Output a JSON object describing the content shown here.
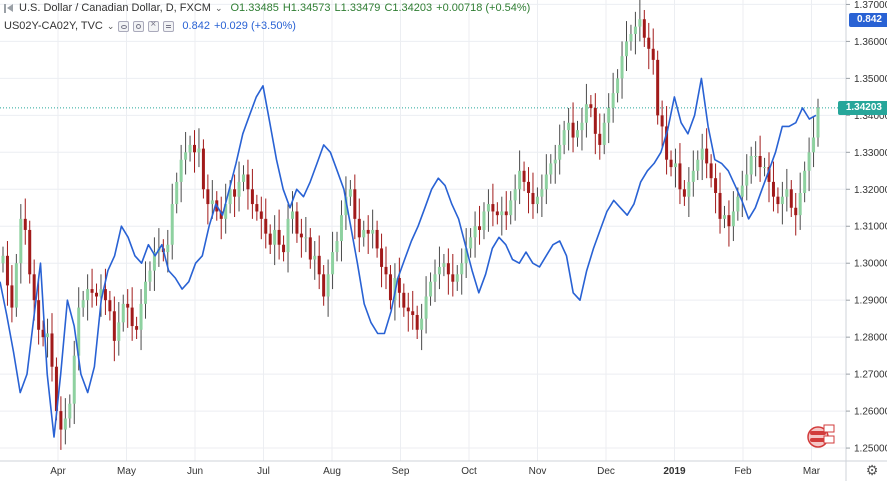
{
  "legend_main": {
    "title": "U.S. Dollar / Canadian Dollar, D, FXCM",
    "open": "O1.33485",
    "high": "H1.34573",
    "low": "L1.33479",
    "close": "C1.34203",
    "change": "+0.00718 (+0.54%)"
  },
  "legend_sub": {
    "title": "US02Y-CA02Y, TVC",
    "value": "0.842",
    "change": "+0.029 (+3.50%)"
  },
  "price_labels": {
    "spread_last": "0.842",
    "usdcad_last": "1.34203"
  },
  "colors": {
    "spread_line": "#2962d4",
    "up_candle": "#8ed1a0",
    "down_candle": "#a11a1a",
    "last_price_line": "#26a69a",
    "grid": "#eceef2",
    "axis_text": "#333333"
  },
  "icons": {
    "collapse": "collapse-icon",
    "dropdown": "chevron-down-icon",
    "visibility": "eye-icon",
    "settings_small": "gear-icon",
    "remove": "close-icon",
    "more": "more-icon",
    "chart_settings": "settings-icon",
    "brand_badge": "brand-badge-icon"
  },
  "chart_data": {
    "type": "line",
    "title": "U.S. Dollar / Canadian Dollar, D, FXCM",
    "xlabel": "",
    "ylabel": "",
    "x_ticks": [
      "Apr",
      "May",
      "Jun",
      "Jul",
      "Aug",
      "Sep",
      "Oct",
      "Nov",
      "Dec",
      "2019",
      "Feb",
      "Mar"
    ],
    "y_ticks": [
      "1.37000",
      "1.36000",
      "1.35000",
      "1.34000",
      "1.33000",
      "1.32000",
      "1.31000",
      "1.30000",
      "1.29000",
      "1.28000",
      "1.27000",
      "1.26000",
      "1.25000"
    ],
    "ylim": [
      1.2465,
      1.3712
    ],
    "grid": true,
    "last_price": 1.34203,
    "series": [
      {
        "name": "U.S. Dollar / Canadian Dollar",
        "kind": "candlestick_close",
        "values": [
          1.302,
          1.294,
          1.288,
          1.3,
          1.312,
          1.309,
          1.297,
          1.29,
          1.282,
          1.28,
          1.281,
          1.272,
          1.26,
          1.255,
          1.258,
          1.262,
          1.275,
          1.288,
          1.29,
          1.293,
          1.292,
          1.291,
          1.293,
          1.29,
          1.287,
          1.279,
          1.284,
          1.289,
          1.288,
          1.283,
          1.282,
          1.289,
          1.295,
          1.298,
          1.303,
          1.304,
          1.303,
          1.305,
          1.316,
          1.322,
          1.328,
          1.33,
          1.332,
          1.33,
          1.331,
          1.32,
          1.316,
          1.317,
          1.314,
          1.312,
          1.316,
          1.32,
          1.318,
          1.322,
          1.324,
          1.32,
          1.316,
          1.314,
          1.312,
          1.308,
          1.305,
          1.309,
          1.305,
          1.303,
          1.312,
          1.314,
          1.308,
          1.307,
          1.307,
          1.301,
          1.302,
          1.297,
          1.291,
          1.297,
          1.303,
          1.306,
          1.313,
          1.318,
          1.32,
          1.312,
          1.307,
          1.309,
          1.308,
          1.309,
          1.304,
          1.299,
          1.297,
          1.29,
          1.296,
          1.292,
          1.288,
          1.287,
          1.286,
          1.282,
          1.285,
          1.291,
          1.295,
          1.297,
          1.299,
          1.3,
          1.297,
          1.295,
          1.297,
          1.3,
          1.304,
          1.307,
          1.31,
          1.309,
          1.314,
          1.316,
          1.314,
          1.313,
          1.314,
          1.313,
          1.317,
          1.32,
          1.325,
          1.322,
          1.319,
          1.316,
          1.318,
          1.32,
          1.324,
          1.327,
          1.328,
          1.332,
          1.336,
          1.338,
          1.334,
          1.336,
          1.338,
          1.343,
          1.342,
          1.335,
          1.332,
          1.338,
          1.342,
          1.346,
          1.35,
          1.356,
          1.36,
          1.362,
          1.364,
          1.366,
          1.361,
          1.358,
          1.355,
          1.34,
          1.337,
          1.328,
          1.326,
          1.327,
          1.32,
          1.318,
          1.322,
          1.325,
          1.328,
          1.331,
          1.327,
          1.323,
          1.319,
          1.312,
          1.313,
          1.31,
          1.314,
          1.318,
          1.321,
          1.324,
          1.329,
          1.329,
          1.326,
          1.326,
          1.322,
          1.318,
          1.316,
          1.318,
          1.32,
          1.315,
          1.313,
          1.319,
          1.325,
          1.33,
          1.334,
          1.342
        ]
      },
      {
        "name": "US02Y-CA02Y",
        "kind": "line",
        "values": [
          1.295,
          1.286,
          1.276,
          1.265,
          1.27,
          1.285,
          1.3,
          1.27,
          1.253,
          1.27,
          1.29,
          1.283,
          1.27,
          1.265,
          1.272,
          1.29,
          1.298,
          1.302,
          1.31,
          1.307,
          1.302,
          1.3,
          1.305,
          1.302,
          1.305,
          1.298,
          1.296,
          1.293,
          1.295,
          1.3,
          1.302,
          1.31,
          1.316,
          1.313,
          1.32,
          1.327,
          1.335,
          1.34,
          1.345,
          1.348,
          1.338,
          1.328,
          1.32,
          1.315,
          1.32,
          1.318,
          1.322,
          1.327,
          1.332,
          1.33,
          1.325,
          1.32,
          1.31,
          1.3,
          1.289,
          1.284,
          1.281,
          1.281,
          1.287,
          1.296,
          1.301,
          1.306,
          1.31,
          1.315,
          1.32,
          1.323,
          1.321,
          1.316,
          1.312,
          1.305,
          1.298,
          1.292,
          1.297,
          1.304,
          1.307,
          1.305,
          1.301,
          1.3,
          1.303,
          1.3,
          1.299,
          1.302,
          1.305,
          1.306,
          1.302,
          1.292,
          1.29,
          1.298,
          1.304,
          1.309,
          1.314,
          1.317,
          1.315,
          1.313,
          1.316,
          1.322,
          1.325,
          1.327,
          1.33,
          1.336,
          1.345,
          1.338,
          1.335,
          1.34,
          1.35,
          1.337,
          1.328,
          1.327,
          1.325,
          1.321,
          1.317,
          1.312,
          1.315,
          1.32,
          1.325,
          1.33,
          1.337,
          1.337,
          1.338,
          1.342,
          1.339,
          1.34
        ]
      }
    ]
  }
}
